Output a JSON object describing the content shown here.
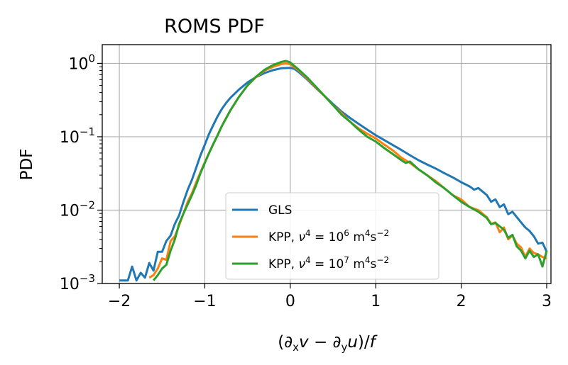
{
  "chart_data": {
    "type": "line",
    "title": "ROMS PDF",
    "xlabel": "(∂ₓv − ∂ᵧu)/f",
    "ylabel": "PDF",
    "x_ticks": [
      {
        "value": -2,
        "label": "−2"
      },
      {
        "value": -1,
        "label": "−1"
      },
      {
        "value": 0,
        "label": "0"
      },
      {
        "value": 1,
        "label": "1"
      },
      {
        "value": 2,
        "label": "2"
      },
      {
        "value": 3,
        "label": "3"
      }
    ],
    "y_ticks": [
      {
        "value": 0.001,
        "base": "10",
        "exp": "−3"
      },
      {
        "value": 0.01,
        "base": "10",
        "exp": "−2"
      },
      {
        "value": 0.1,
        "base": "10",
        "exp": "−1"
      },
      {
        "value": 1,
        "base": "10",
        "exp": "0"
      }
    ],
    "xlim": [
      -2.2,
      3.05
    ],
    "ylim": [
      0.001,
      1.8
    ],
    "yscale": "log",
    "grid": true,
    "legend_position": "lower-right",
    "series": [
      {
        "name": "GLS",
        "legend_parts": {
          "pre": "GLS",
          "mid": "",
          "exp1": "",
          "unit": "",
          "exp2": ""
        },
        "color": "#1f77b4",
        "points": [
          [
            -2.0,
            0.0011
          ],
          [
            -1.9,
            0.0011
          ],
          [
            -1.85,
            0.0017
          ],
          [
            -1.8,
            0.0011
          ],
          [
            -1.75,
            0.0014
          ],
          [
            -1.7,
            0.0012
          ],
          [
            -1.65,
            0.0019
          ],
          [
            -1.6,
            0.0015
          ],
          [
            -1.55,
            0.0027
          ],
          [
            -1.5,
            0.0027
          ],
          [
            -1.45,
            0.0038
          ],
          [
            -1.4,
            0.0045
          ],
          [
            -1.35,
            0.0065
          ],
          [
            -1.3,
            0.0085
          ],
          [
            -1.25,
            0.013
          ],
          [
            -1.2,
            0.019
          ],
          [
            -1.15,
            0.026
          ],
          [
            -1.1,
            0.038
          ],
          [
            -1.05,
            0.056
          ],
          [
            -1.0,
            0.078
          ],
          [
            -0.95,
            0.11
          ],
          [
            -0.9,
            0.145
          ],
          [
            -0.85,
            0.19
          ],
          [
            -0.8,
            0.24
          ],
          [
            -0.75,
            0.29
          ],
          [
            -0.7,
            0.34
          ],
          [
            -0.6,
            0.44
          ],
          [
            -0.5,
            0.55
          ],
          [
            -0.4,
            0.65
          ],
          [
            -0.3,
            0.74
          ],
          [
            -0.2,
            0.81
          ],
          [
            -0.1,
            0.86
          ],
          [
            0.0,
            0.87
          ],
          [
            0.05,
            0.84
          ],
          [
            0.1,
            0.76
          ],
          [
            0.2,
            0.6
          ],
          [
            0.3,
            0.46
          ],
          [
            0.4,
            0.36
          ],
          [
            0.5,
            0.28
          ],
          [
            0.6,
            0.22
          ],
          [
            0.7,
            0.18
          ],
          [
            0.8,
            0.15
          ],
          [
            0.9,
            0.125
          ],
          [
            1.0,
            0.105
          ],
          [
            1.1,
            0.09
          ],
          [
            1.2,
            0.077
          ],
          [
            1.3,
            0.066
          ],
          [
            1.4,
            0.056
          ],
          [
            1.5,
            0.048
          ],
          [
            1.6,
            0.042
          ],
          [
            1.7,
            0.037
          ],
          [
            1.8,
            0.032
          ],
          [
            1.9,
            0.028
          ],
          [
            2.0,
            0.024
          ],
          [
            2.1,
            0.021
          ],
          [
            2.15,
            0.019
          ],
          [
            2.2,
            0.02
          ],
          [
            2.3,
            0.016
          ],
          [
            2.35,
            0.013
          ],
          [
            2.4,
            0.014
          ],
          [
            2.45,
            0.011
          ],
          [
            2.5,
            0.012
          ],
          [
            2.55,
            0.0088
          ],
          [
            2.6,
            0.0095
          ],
          [
            2.7,
            0.0068
          ],
          [
            2.75,
            0.0058
          ],
          [
            2.8,
            0.0052
          ],
          [
            2.85,
            0.0044
          ],
          [
            2.9,
            0.0035
          ],
          [
            2.95,
            0.0036
          ],
          [
            3.0,
            0.0027
          ]
        ]
      },
      {
        "name": "KPP, ν⁴ = 10⁶ m⁴s⁻²",
        "legend_parts": {
          "pre": "KPP, ",
          "mid": "ν",
          "exp1": "6",
          "unit": " m",
          "exp2": "−2"
        },
        "color": "#ff7f0e",
        "points": [
          [
            -1.65,
            0.0012
          ],
          [
            -1.6,
            0.0013
          ],
          [
            -1.55,
            0.0016
          ],
          [
            -1.5,
            0.0022
          ],
          [
            -1.45,
            0.0021
          ],
          [
            -1.4,
            0.0038
          ],
          [
            -1.35,
            0.0044
          ],
          [
            -1.3,
            0.0062
          ],
          [
            -1.25,
            0.009
          ],
          [
            -1.2,
            0.013
          ],
          [
            -1.15,
            0.017
          ],
          [
            -1.1,
            0.024
          ],
          [
            -1.05,
            0.033
          ],
          [
            -1.0,
            0.045
          ],
          [
            -0.95,
            0.06
          ],
          [
            -0.9,
            0.08
          ],
          [
            -0.85,
            0.105
          ],
          [
            -0.8,
            0.14
          ],
          [
            -0.75,
            0.18
          ],
          [
            -0.7,
            0.23
          ],
          [
            -0.6,
            0.35
          ],
          [
            -0.5,
            0.5
          ],
          [
            -0.4,
            0.65
          ],
          [
            -0.3,
            0.8
          ],
          [
            -0.2,
            0.9
          ],
          [
            -0.1,
            0.98
          ],
          [
            -0.05,
            1.0
          ],
          [
            0.0,
            0.97
          ],
          [
            0.1,
            0.8
          ],
          [
            0.2,
            0.62
          ],
          [
            0.3,
            0.47
          ],
          [
            0.4,
            0.36
          ],
          [
            0.5,
            0.27
          ],
          [
            0.6,
            0.21
          ],
          [
            0.7,
            0.16
          ],
          [
            0.8,
            0.13
          ],
          [
            0.9,
            0.11
          ],
          [
            1.0,
            0.095
          ],
          [
            1.1,
            0.078
          ],
          [
            1.2,
            0.065
          ],
          [
            1.3,
            0.052
          ],
          [
            1.4,
            0.044
          ],
          [
            1.5,
            0.036
          ],
          [
            1.6,
            0.03
          ],
          [
            1.7,
            0.025
          ],
          [
            1.8,
            0.02
          ],
          [
            1.9,
            0.016
          ],
          [
            2.0,
            0.014
          ],
          [
            2.1,
            0.011
          ],
          [
            2.2,
            0.01
          ],
          [
            2.3,
            0.008
          ],
          [
            2.35,
            0.0065
          ],
          [
            2.4,
            0.0068
          ],
          [
            2.45,
            0.005
          ],
          [
            2.5,
            0.0058
          ],
          [
            2.55,
            0.004
          ],
          [
            2.6,
            0.0045
          ],
          [
            2.65,
            0.0035
          ],
          [
            2.7,
            0.0031
          ],
          [
            2.75,
            0.0023
          ],
          [
            2.8,
            0.003
          ],
          [
            2.85,
            0.0026
          ],
          [
            2.9,
            0.0025
          ],
          [
            2.95,
            0.0023
          ],
          [
            3.0,
            0.0022
          ]
        ]
      },
      {
        "name": "KPP, ν⁴ = 10⁷ m⁴s⁻²",
        "legend_parts": {
          "pre": "KPP, ",
          "mid": "ν",
          "exp1": "7",
          "unit": " m",
          "exp2": "−2"
        },
        "color": "#2ca02c",
        "points": [
          [
            -1.6,
            0.0011
          ],
          [
            -1.55,
            0.0013
          ],
          [
            -1.5,
            0.0016
          ],
          [
            -1.45,
            0.0018
          ],
          [
            -1.4,
            0.0028
          ],
          [
            -1.35,
            0.004
          ],
          [
            -1.3,
            0.0065
          ],
          [
            -1.25,
            0.009
          ],
          [
            -1.2,
            0.012
          ],
          [
            -1.15,
            0.016
          ],
          [
            -1.1,
            0.022
          ],
          [
            -1.05,
            0.032
          ],
          [
            -1.0,
            0.044
          ],
          [
            -0.95,
            0.06
          ],
          [
            -0.9,
            0.08
          ],
          [
            -0.85,
            0.105
          ],
          [
            -0.8,
            0.14
          ],
          [
            -0.75,
            0.18
          ],
          [
            -0.7,
            0.23
          ],
          [
            -0.6,
            0.35
          ],
          [
            -0.5,
            0.5
          ],
          [
            -0.4,
            0.66
          ],
          [
            -0.3,
            0.82
          ],
          [
            -0.2,
            0.95
          ],
          [
            -0.1,
            1.05
          ],
          [
            -0.05,
            1.08
          ],
          [
            0.0,
            1.03
          ],
          [
            0.1,
            0.82
          ],
          [
            0.2,
            0.64
          ],
          [
            0.3,
            0.48
          ],
          [
            0.4,
            0.36
          ],
          [
            0.5,
            0.27
          ],
          [
            0.6,
            0.2
          ],
          [
            0.7,
            0.16
          ],
          [
            0.8,
            0.125
          ],
          [
            0.9,
            0.1
          ],
          [
            1.0,
            0.086
          ],
          [
            1.1,
            0.07
          ],
          [
            1.2,
            0.058
          ],
          [
            1.3,
            0.048
          ],
          [
            1.35,
            0.044
          ],
          [
            1.4,
            0.046
          ],
          [
            1.5,
            0.036
          ],
          [
            1.6,
            0.03
          ],
          [
            1.7,
            0.024
          ],
          [
            1.8,
            0.02
          ],
          [
            1.9,
            0.016
          ],
          [
            2.0,
            0.013
          ],
          [
            2.1,
            0.011
          ],
          [
            2.2,
            0.0095
          ],
          [
            2.3,
            0.0078
          ],
          [
            2.35,
            0.0064
          ],
          [
            2.4,
            0.0067
          ],
          [
            2.5,
            0.0054
          ],
          [
            2.55,
            0.0042
          ],
          [
            2.6,
            0.0046
          ],
          [
            2.65,
            0.0032
          ],
          [
            2.7,
            0.0028
          ],
          [
            2.75,
            0.0022
          ],
          [
            2.8,
            0.0028
          ],
          [
            2.85,
            0.0023
          ],
          [
            2.9,
            0.0025
          ],
          [
            2.95,
            0.0017
          ],
          [
            3.0,
            0.0028
          ]
        ]
      }
    ]
  }
}
